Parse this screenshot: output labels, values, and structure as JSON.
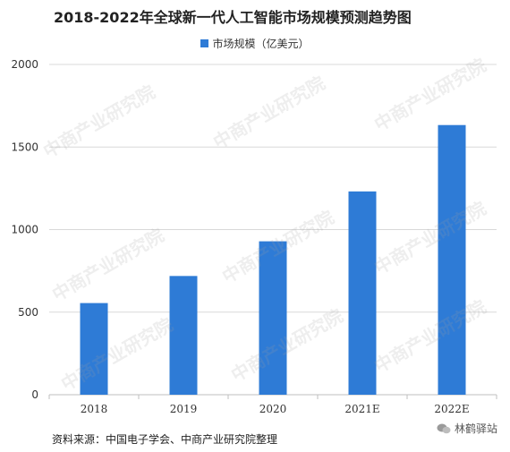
{
  "chart_data": {
    "type": "bar",
    "title": "2018-2022年全球新一代人工智能市场规模预测趋势图",
    "categories": [
      "2018",
      "2019",
      "2020",
      "2021E",
      "2022E"
    ],
    "series": [
      {
        "name": "市场规模（亿美元）",
        "values": [
          555,
          719,
          929,
          1231,
          1633
        ],
        "color": "#2e7bd6"
      }
    ],
    "ylim": [
      0,
      2000
    ],
    "yticks": [
      0,
      500,
      1000,
      1500,
      2000
    ],
    "grid": true,
    "legend": "top-center"
  },
  "source": "资料来源：中国电子学会、中商产业研究院整理",
  "brand": "林鹤驿站",
  "watermark": "中商产业研究院"
}
